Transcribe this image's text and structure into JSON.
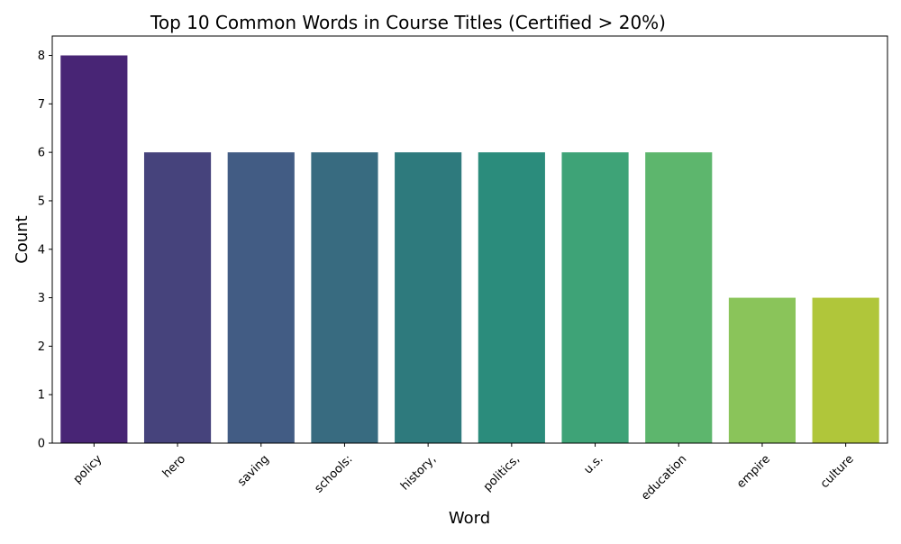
{
  "chart_data": {
    "type": "bar",
    "title": "Top 10 Common Words in Course Titles (Certified > 20%)",
    "xlabel": "Word",
    "ylabel": "Count",
    "categories": [
      "policy",
      "hero",
      "saving",
      "schools:",
      "history,",
      "politics,",
      "u.s.",
      "education",
      "empire",
      "culture"
    ],
    "values": [
      8,
      6,
      6,
      6,
      6,
      6,
      6,
      6,
      3,
      3
    ],
    "colors": [
      "#482575",
      "#46437c",
      "#425c84",
      "#386b80",
      "#2e7a7d",
      "#2b8c7c",
      "#3ea377",
      "#5db66d",
      "#8ac45a",
      "#b0c63a"
    ],
    "ylim": [
      0,
      8.4
    ],
    "yticks": [
      0,
      1,
      2,
      3,
      4,
      5,
      6,
      7,
      8
    ],
    "grid": false,
    "legend": "none"
  }
}
